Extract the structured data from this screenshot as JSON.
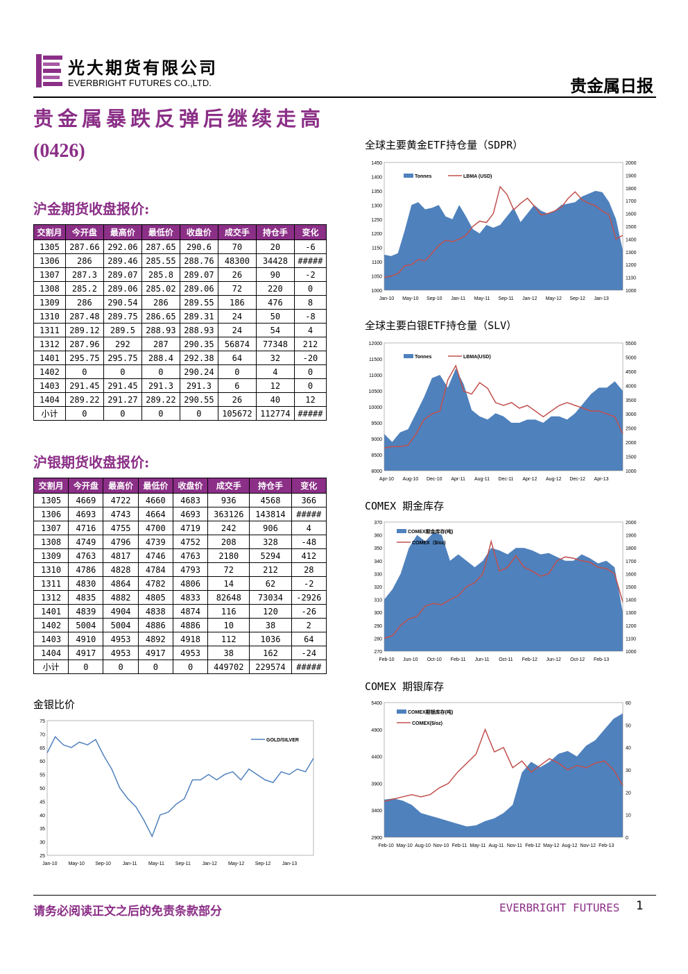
{
  "header": {
    "company_cn": "光大期货有限公司",
    "company_en": "EVERBRIGHT FUTURES CO.,LTD.",
    "report_type": "贵金属日报"
  },
  "title": "贵金属暴跌反弹后继续走高",
  "date_code": "(0426)",
  "gold_table": {
    "title": "沪金期货收盘报价:",
    "headers": [
      "交割月",
      "今开盘",
      "最高价",
      "最低价",
      "收盘价",
      "成交手",
      "持仓手",
      "变化"
    ],
    "rows": [
      [
        "1305",
        "287.66",
        "292.06",
        "287.65",
        "290.6",
        "70",
        "20",
        "-6"
      ],
      [
        "1306",
        "286",
        "289.46",
        "285.55",
        "288.76",
        "48300",
        "34428",
        "#####"
      ],
      [
        "1307",
        "287.3",
        "289.07",
        "285.8",
        "289.07",
        "26",
        "90",
        "-2"
      ],
      [
        "1308",
        "285.2",
        "289.06",
        "285.02",
        "289.06",
        "72",
        "220",
        "0"
      ],
      [
        "1309",
        "286",
        "290.54",
        "286",
        "289.55",
        "186",
        "476",
        "8"
      ],
      [
        "1310",
        "287.48",
        "289.75",
        "286.65",
        "289.31",
        "24",
        "50",
        "-8"
      ],
      [
        "1311",
        "289.12",
        "289.5",
        "288.93",
        "288.93",
        "24",
        "54",
        "4"
      ],
      [
        "1312",
        "287.96",
        "292",
        "287",
        "290.35",
        "56874",
        "77348",
        "212"
      ],
      [
        "1401",
        "295.75",
        "295.75",
        "288.4",
        "292.38",
        "64",
        "32",
        "-20"
      ],
      [
        "1402",
        "0",
        "0",
        "0",
        "290.24",
        "0",
        "4",
        "0"
      ],
      [
        "1403",
        "291.45",
        "291.45",
        "291.3",
        "291.3",
        "6",
        "12",
        "0"
      ],
      [
        "1404",
        "289.22",
        "291.27",
        "289.22",
        "290.55",
        "26",
        "40",
        "12"
      ],
      [
        "小计",
        "0",
        "0",
        "0",
        "0",
        "105672",
        "112774",
        "#####"
      ]
    ]
  },
  "silver_table": {
    "title": "沪银期货收盘报价:",
    "headers": [
      "交割月",
      "今开盘",
      "最高价",
      "最低价",
      "收盘价",
      "成交手",
      "持仓手",
      "变化"
    ],
    "rows": [
      [
        "1305",
        "4669",
        "4722",
        "4660",
        "4683",
        "936",
        "4568",
        "366"
      ],
      [
        "1306",
        "4693",
        "4743",
        "4664",
        "4693",
        "363126",
        "143814",
        "#####"
      ],
      [
        "1307",
        "4716",
        "4755",
        "4700",
        "4719",
        "242",
        "906",
        "4"
      ],
      [
        "1308",
        "4749",
        "4796",
        "4739",
        "4752",
        "208",
        "328",
        "-48"
      ],
      [
        "1309",
        "4763",
        "4817",
        "4746",
        "4763",
        "2180",
        "5294",
        "412"
      ],
      [
        "1310",
        "4786",
        "4828",
        "4784",
        "4793",
        "72",
        "212",
        "28"
      ],
      [
        "1311",
        "4830",
        "4864",
        "4782",
        "4806",
        "14",
        "62",
        "-2"
      ],
      [
        "1312",
        "4835",
        "4882",
        "4805",
        "4833",
        "82648",
        "73034",
        "-2926"
      ],
      [
        "1401",
        "4839",
        "4904",
        "4838",
        "4874",
        "116",
        "120",
        "-26"
      ],
      [
        "1402",
        "5004",
        "5004",
        "4886",
        "4886",
        "10",
        "38",
        "2"
      ],
      [
        "1403",
        "4910",
        "4953",
        "4892",
        "4918",
        "112",
        "1036",
        "64"
      ],
      [
        "1404",
        "4917",
        "4953",
        "4917",
        "4953",
        "38",
        "162",
        "-24"
      ],
      [
        "小计",
        "0",
        "0",
        "0",
        "0",
        "449702",
        "229574",
        "#####"
      ]
    ]
  },
  "chart_data": [
    {
      "id": "sdpr",
      "type": "area+line",
      "title": "全球主要黄金ETF持仓量（SDPR）",
      "x_labels": [
        "Jan-10",
        "May-10",
        "Sep-10",
        "Jan-11",
        "May-11",
        "Sep-11",
        "Jan-12",
        "May-12",
        "Sep-12",
        "Jan-13"
      ],
      "y_left": {
        "min": 1000,
        "max": 1450,
        "ticks": [
          1000,
          1050,
          1100,
          1150,
          1200,
          1250,
          1300,
          1350,
          1400,
          1450
        ]
      },
      "y_right": {
        "min": 1000,
        "max": 2000,
        "ticks": [
          1000,
          1100,
          1200,
          1300,
          1400,
          1500,
          1600,
          1700,
          1800,
          1900,
          2000
        ]
      },
      "series": [
        {
          "name": "Tonnes",
          "kind": "area",
          "axis": "left",
          "color": "#4f81bd",
          "values": [
            1125,
            1120,
            1130,
            1210,
            1300,
            1310,
            1285,
            1290,
            1300,
            1260,
            1250,
            1300,
            1260,
            1215,
            1200,
            1230,
            1220,
            1230,
            1260,
            1290,
            1240,
            1270,
            1300,
            1280,
            1270,
            1280,
            1300,
            1305,
            1310,
            1330,
            1340,
            1350,
            1345,
            1310,
            1250,
            1140
          ]
        },
        {
          "name": "LBMA (USD)",
          "kind": "line",
          "axis": "right",
          "color": "#c0504d",
          "values": [
            1100,
            1110,
            1130,
            1190,
            1200,
            1240,
            1230,
            1290,
            1350,
            1390,
            1380,
            1400,
            1430,
            1500,
            1540,
            1530,
            1600,
            1810,
            1750,
            1630,
            1680,
            1720,
            1660,
            1590,
            1600,
            1620,
            1650,
            1720,
            1770,
            1710,
            1680,
            1660,
            1620,
            1590,
            1400,
            1430
          ]
        }
      ]
    },
    {
      "id": "slv",
      "type": "area+line",
      "title": "全球主要白银ETF持仓量（SLV）",
      "x_labels": [
        "Apr-10",
        "Aug-10",
        "Dec-10",
        "Apr-11",
        "Aug-11",
        "Dec-11",
        "Apr-12",
        "Aug-12",
        "Dec-12",
        "Apr-13"
      ],
      "y_left": {
        "min": 8000,
        "max": 12000,
        "ticks": [
          8000,
          8500,
          9000,
          9500,
          10000,
          10500,
          11000,
          11500,
          12000
        ]
      },
      "y_right": {
        "min": 1000,
        "max": 5500,
        "ticks": [
          1000,
          1500,
          2000,
          2500,
          3000,
          3500,
          4000,
          4500,
          5000,
          5500
        ]
      },
      "series": [
        {
          "name": "Tonnes",
          "kind": "area",
          "axis": "left",
          "color": "#4f81bd",
          "values": [
            9150,
            8900,
            9200,
            9300,
            9800,
            10300,
            10900,
            11000,
            10600,
            11200,
            10700,
            9900,
            9700,
            9600,
            9800,
            9700,
            9500,
            9500,
            9600,
            9600,
            9500,
            9700,
            9700,
            9600,
            9800,
            10100,
            10400,
            10600,
            10600,
            10800,
            10500
          ]
        },
        {
          "name": "LBMA(USD)",
          "kind": "line",
          "axis": "right",
          "color": "#c0504d",
          "values": [
            1800,
            1850,
            1850,
            1900,
            2300,
            2800,
            3000,
            3100,
            4200,
            4700,
            3800,
            3700,
            4100,
            3900,
            3400,
            3300,
            3400,
            3200,
            3300,
            3100,
            2900,
            3100,
            3300,
            3400,
            3300,
            3200,
            3100,
            3100,
            3000,
            2900,
            2300
          ]
        }
      ]
    },
    {
      "id": "comex-gold",
      "type": "area+line",
      "title": "COMEX 期金库存",
      "x_labels": [
        "Feb-10",
        "Jun-10",
        "Oct-10",
        "Feb-11",
        "Jun-11",
        "Oct-11",
        "Feb-12",
        "Jun-12",
        "Oct-12",
        "Feb-13"
      ],
      "y_left": {
        "min": 270,
        "max": 370,
        "ticks": [
          270,
          280,
          290,
          300,
          310,
          320,
          330,
          340,
          350,
          360,
          370
        ]
      },
      "y_right": {
        "min": 1000,
        "max": 2000,
        "ticks": [
          1000,
          1100,
          1200,
          1300,
          1400,
          1500,
          1600,
          1700,
          1800,
          1900,
          2000
        ]
      },
      "series": [
        {
          "name": "COMEX期金库存(吨)",
          "kind": "area",
          "axis": "left",
          "color": "#4f81bd",
          "values": [
            310,
            318,
            330,
            350,
            360,
            355,
            362,
            360,
            340,
            345,
            340,
            335,
            340,
            350,
            348,
            345,
            350,
            350,
            348,
            345,
            346,
            343,
            340,
            340,
            345,
            342,
            338,
            340,
            335,
            300
          ]
        },
        {
          "name": "COMEX（$/oz)",
          "kind": "line",
          "axis": "right",
          "color": "#c0504d",
          "values": [
            1100,
            1120,
            1200,
            1250,
            1270,
            1350,
            1370,
            1360,
            1400,
            1430,
            1500,
            1530,
            1600,
            1850,
            1620,
            1650,
            1740,
            1650,
            1620,
            1580,
            1600,
            1700,
            1730,
            1720,
            1700,
            1690,
            1650,
            1640,
            1600,
            1380
          ]
        }
      ]
    },
    {
      "id": "comex-silver",
      "type": "area+line",
      "title": "COMEX 期银库存",
      "x_labels": [
        "Feb-10",
        "May-10",
        "Aug-10",
        "Nov-10",
        "Feb-11",
        "May-11",
        "Aug-11",
        "Nov-11",
        "Feb-12",
        "May-12",
        "Aug-12",
        "Nov-12",
        "Feb-13"
      ],
      "y_left": {
        "min": 2900,
        "max": 5400,
        "ticks": [
          2900,
          3400,
          3900,
          4400,
          4900,
          5400
        ]
      },
      "y_right": {
        "min": 0,
        "max": 60,
        "ticks": [
          0,
          10,
          20,
          30,
          40,
          50,
          60
        ]
      },
      "series": [
        {
          "name": "COMEX期银库存(吨)",
          "kind": "area",
          "axis": "left",
          "color": "#4f81bd",
          "values": [
            3600,
            3620,
            3580,
            3500,
            3350,
            3300,
            3250,
            3200,
            3150,
            3100,
            3120,
            3200,
            3250,
            3350,
            3500,
            4100,
            4300,
            4200,
            4300,
            4450,
            4500,
            4400,
            4600,
            4700,
            4900,
            5100,
            5200
          ]
        },
        {
          "name": "COMEX($/oz)",
          "kind": "line",
          "axis": "right",
          "color": "#c0504d",
          "values": [
            16,
            17,
            18,
            19,
            18,
            19,
            22,
            24,
            29,
            33,
            37,
            48,
            38,
            40,
            31,
            34,
            29,
            32,
            35,
            33,
            30,
            32,
            31,
            33,
            34,
            30,
            23
          ]
        }
      ]
    },
    {
      "id": "gold-silver-ratio",
      "type": "line",
      "title": "金银比价",
      "x_labels": [
        "Jan-10",
        "May-10",
        "Sep-10",
        "Jan-11",
        "May-11",
        "Sep-11",
        "Jan-12",
        "May-12",
        "Sep-12",
        "Jan-13"
      ],
      "y_left": {
        "min": 25,
        "max": 75,
        "ticks": [
          25,
          30,
          35,
          40,
          45,
          50,
          55,
          60,
          65,
          70,
          75
        ]
      },
      "series": [
        {
          "name": "GOLD/SILVER",
          "kind": "line",
          "axis": "left",
          "color": "#4f81bd",
          "values": [
            63,
            69,
            66,
            65,
            67,
            66,
            68,
            62,
            57,
            50,
            46,
            43,
            38,
            32,
            40,
            41,
            44,
            46,
            53,
            53,
            55,
            53,
            55,
            56,
            53,
            57,
            55,
            53,
            52,
            56,
            55,
            57,
            56,
            61
          ]
        }
      ]
    }
  ],
  "footer": {
    "disclaimer": "请务必阅读正文之后的免责条款部分",
    "brand": "EVERBRIGHT FUTURES",
    "page": "1"
  }
}
